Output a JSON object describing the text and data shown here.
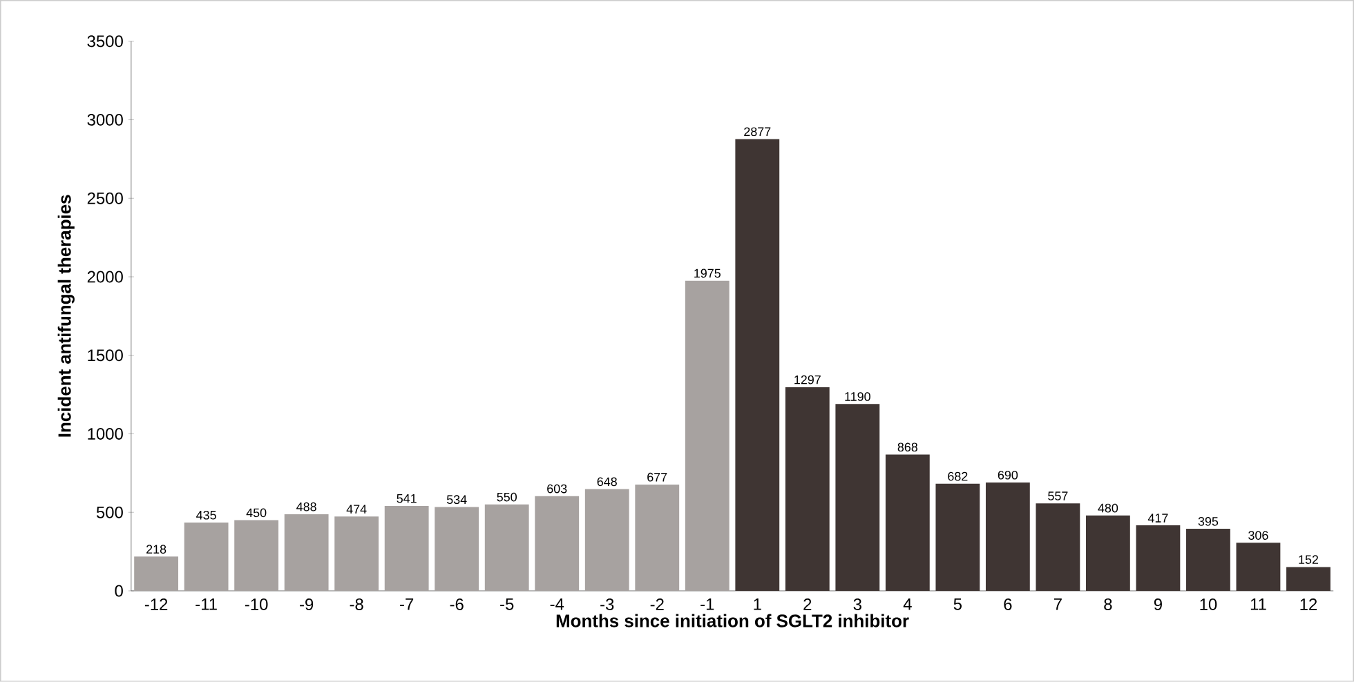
{
  "chart_data": {
    "type": "bar",
    "xlabel": "Months since initiation of SGLT2 inhibitor",
    "ylabel": "Incident antifungal therapies",
    "categories": [
      "-12",
      "-11",
      "-10",
      "-9",
      "-8",
      "-7",
      "-6",
      "-5",
      "-4",
      "-3",
      "-2",
      "-1",
      "1",
      "2",
      "3",
      "4",
      "5",
      "6",
      "7",
      "8",
      "9",
      "10",
      "11",
      "12"
    ],
    "values": [
      218,
      435,
      450,
      488,
      474,
      541,
      534,
      550,
      603,
      648,
      677,
      1975,
      2877,
      1297,
      1190,
      868,
      682,
      690,
      557,
      480,
      417,
      395,
      306,
      152
    ],
    "colors": [
      "#a7a2a0",
      "#a7a2a0",
      "#a7a2a0",
      "#a7a2a0",
      "#a7a2a0",
      "#a7a2a0",
      "#a7a2a0",
      "#a7a2a0",
      "#a7a2a0",
      "#a7a2a0",
      "#a7a2a0",
      "#a7a2a0",
      "#3f3533",
      "#3f3533",
      "#3f3533",
      "#3f3533",
      "#3f3533",
      "#3f3533",
      "#3f3533",
      "#3f3533",
      "#3f3533",
      "#3f3533",
      "#3f3533",
      "#3f3533"
    ],
    "ylim": [
      0,
      3500
    ],
    "yticks": [
      0,
      500,
      1000,
      1500,
      2000,
      2500,
      3000,
      3500
    ],
    "data_labels": true
  }
}
